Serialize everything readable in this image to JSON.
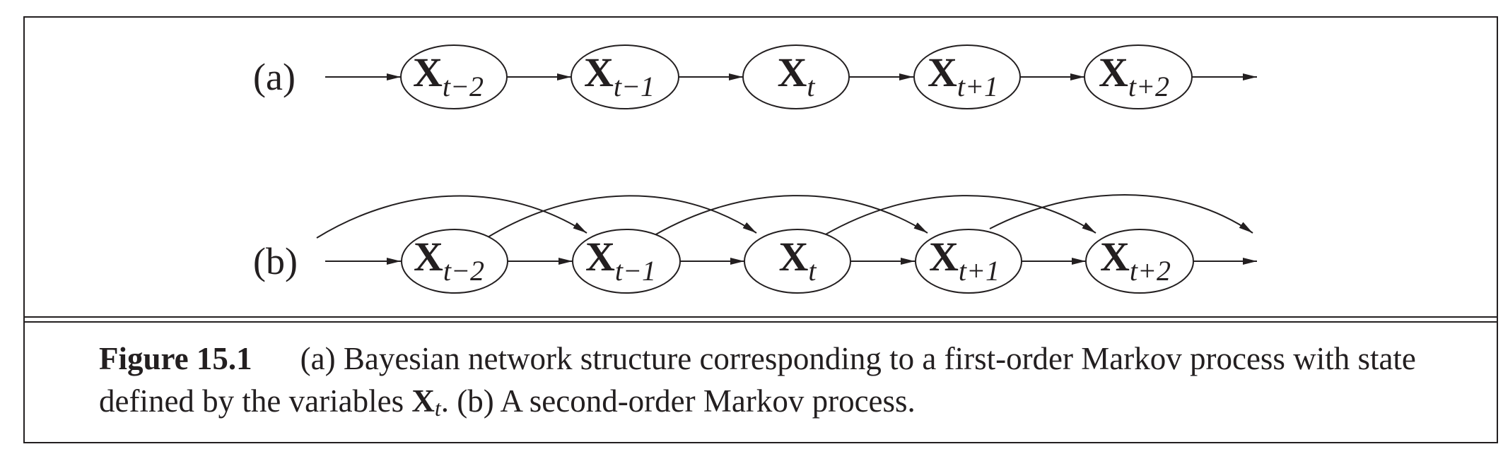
{
  "figure": {
    "panels": [
      {
        "label": "(a)",
        "nodes": [
          {
            "var": "X",
            "sub": "t−2"
          },
          {
            "var": "X",
            "sub": "t−1"
          },
          {
            "var": "X",
            "sub": "t"
          },
          {
            "var": "X",
            "sub": "t+1"
          },
          {
            "var": "X",
            "sub": "t+2"
          }
        ],
        "skip_arcs": false
      },
      {
        "label": "(b)",
        "nodes": [
          {
            "var": "X",
            "sub": "t−2"
          },
          {
            "var": "X",
            "sub": "t−1"
          },
          {
            "var": "X",
            "sub": "t"
          },
          {
            "var": "X",
            "sub": "t+1"
          },
          {
            "var": "X",
            "sub": "t+2"
          }
        ],
        "skip_arcs": true
      }
    ],
    "caption": {
      "title": "Figure 15.1",
      "text_part1": "(a) Bayesian network structure corresponding to a first-order Markov process with state defined by the variables ",
      "var": "X",
      "var_sub": "t",
      "text_part2": ". (b) A second-order Markov process."
    }
  }
}
